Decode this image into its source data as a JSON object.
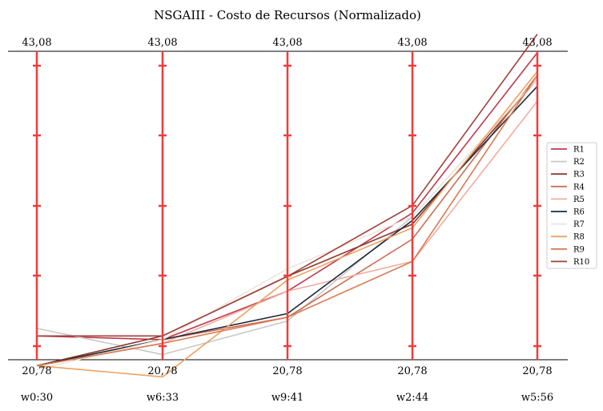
{
  "chart_data": {
    "type": "parallel_coordinates",
    "title": "NSGAIII - Costo de Recursos (Normalizado)",
    "categories": [
      "w0:30",
      "w6:33",
      "w9:41",
      "w2:44",
      "w5:56"
    ],
    "top_tick_labels": [
      "43,08",
      "43,08",
      "43,08",
      "43,08",
      "43,08"
    ],
    "bottom_tick_labels": [
      "20,78",
      "20,78",
      "20,78",
      "20,78",
      "20,78"
    ],
    "ylim": [
      0,
      1
    ],
    "axis_color": "#f03c3c",
    "legend_position": "right",
    "series": [
      {
        "name": "R1",
        "color": "#c0394b",
        "values": [
          0.15,
          0.14,
          0.27,
          0.48,
          0.91
        ]
      },
      {
        "name": "R2",
        "color": "#c8c8c8",
        "values": [
          0.17,
          0.1,
          0.19,
          0.47,
          0.84
        ]
      },
      {
        "name": "R3",
        "color": "#8b3a2f",
        "values": [
          0.07,
          0.15,
          0.31,
          0.45,
          0.84
        ]
      },
      {
        "name": "R4",
        "color": "#cd6e55",
        "values": [
          0.07,
          0.14,
          0.2,
          0.41,
          0.85
        ]
      },
      {
        "name": "R5",
        "color": "#f2aca0",
        "values": [
          0.07,
          0.13,
          0.27,
          0.35,
          0.78
        ]
      },
      {
        "name": "R6",
        "color": "#1e2a3a",
        "values": [
          0.07,
          0.14,
          0.21,
          0.46,
          0.82
        ]
      },
      {
        "name": "R7",
        "color": "#ede6da",
        "values": [
          0.06,
          0.14,
          0.33,
          0.47,
          0.84
        ]
      },
      {
        "name": "R8",
        "color": "#f0a060",
        "values": [
          0.07,
          0.04,
          0.3,
          0.44,
          0.86
        ]
      },
      {
        "name": "R9",
        "color": "#d97a50",
        "values": [
          0.07,
          0.13,
          0.2,
          0.35,
          0.85
        ]
      },
      {
        "name": "R10",
        "color": "#a0423a",
        "values": [
          0.15,
          0.15,
          0.31,
          0.5,
          0.96
        ]
      }
    ]
  }
}
